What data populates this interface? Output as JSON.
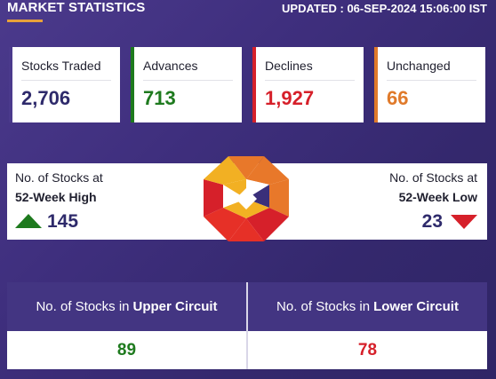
{
  "header": {
    "title": "MARKET STATISTICS",
    "updated": "UPDATED : 06-SEP-2024 15:06:00 IST"
  },
  "colors": {
    "accent": "#e8a13a",
    "green": "#1e7a1e",
    "red": "#d6202a",
    "orange": "#e07a2a",
    "navy": "#2e2a6b"
  },
  "cards": [
    {
      "label": "Stocks Traded",
      "value": "2,706",
      "color": "#2e2a6b",
      "border": "#4b3a8c"
    },
    {
      "label": "Advances",
      "value": "713",
      "color": "#1e7a1e",
      "border": "#1e7a1e"
    },
    {
      "label": "Declines",
      "value": "1,927",
      "color": "#d6202a",
      "border": "#d6202a"
    },
    {
      "label": "Unchanged",
      "value": "66",
      "color": "#e07a2a",
      "border": "#e07a2a"
    }
  ],
  "week52": {
    "high": {
      "line1": "No. of Stocks at",
      "line2": "52-Week High",
      "value": "145",
      "icon": "arrow-up-icon"
    },
    "low": {
      "line1": "No. of Stocks at",
      "line2": "52-Week Low",
      "value": "23",
      "icon": "arrow-down-icon"
    }
  },
  "circuit": {
    "upper": {
      "prefix": "No. of Stocks in",
      "emph": "Upper Circuit",
      "value": "89"
    },
    "lower": {
      "prefix": "No. of Stocks in",
      "emph": "Lower Circuit",
      "value": "78"
    }
  }
}
